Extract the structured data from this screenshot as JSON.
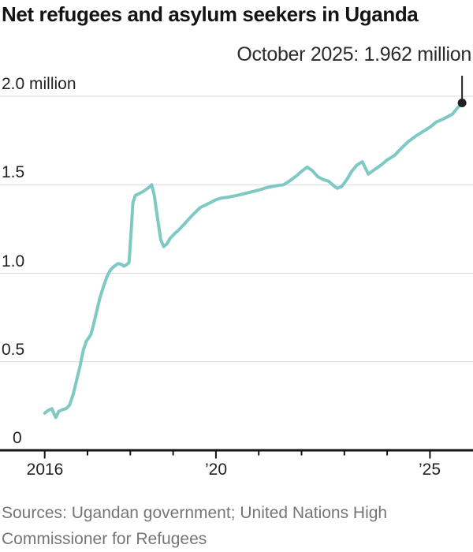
{
  "title": "Net refugees and asylum seekers in Uganda",
  "annotation": "October 2025: 1.962 million",
  "sources": {
    "lines": [
      "Sources: Ugandan government; United Nations High",
      "Commissioner for Refugees"
    ]
  },
  "colors": {
    "line": "#7fc9c5",
    "marker": "#222222",
    "grid": "#d9d9d9",
    "axis": "#141414",
    "text": "#222222",
    "muted": "#757575"
  },
  "chart_data": {
    "type": "line",
    "title": "Net refugees and asylum seekers in Uganda",
    "xlabel": "",
    "ylabel": "million",
    "ylim": [
      0,
      2.0
    ],
    "xlim": [
      2015.0,
      2026.0
    ],
    "grid": true,
    "legend_position": "none",
    "annotation": "October 2025: 1.962 million",
    "end_point": {
      "year": 2025.75,
      "value": 1.962,
      "label": "October 2025: 1.962 million"
    },
    "yticks": [
      {
        "value": 2.0,
        "label": "2.0 million"
      },
      {
        "value": 1.5,
        "label": "1.5"
      },
      {
        "value": 1.0,
        "label": "1.0"
      },
      {
        "value": 0.5,
        "label": "0.5"
      },
      {
        "value": 0.0,
        "label": "0"
      }
    ],
    "xticks": [
      {
        "year": 2016,
        "label": "2016",
        "major": true
      },
      {
        "year": 2017,
        "label": "",
        "major": false
      },
      {
        "year": 2018,
        "label": "",
        "major": false
      },
      {
        "year": 2019,
        "label": "",
        "major": false
      },
      {
        "year": 2020,
        "label": "’20",
        "major": true
      },
      {
        "year": 2021,
        "label": "",
        "major": false
      },
      {
        "year": 2022,
        "label": "",
        "major": false
      },
      {
        "year": 2023,
        "label": "",
        "major": false
      },
      {
        "year": 2024,
        "label": "",
        "major": false
      },
      {
        "year": 2025,
        "label": "’25",
        "major": true
      }
    ],
    "series": [
      {
        "name": "Net refugees and asylum seekers (millions)",
        "points": [
          [
            2016.0,
            0.21
          ],
          [
            2016.08,
            0.225
          ],
          [
            2016.17,
            0.235
          ],
          [
            2016.22,
            0.205
          ],
          [
            2016.26,
            0.185
          ],
          [
            2016.33,
            0.22
          ],
          [
            2016.42,
            0.23
          ],
          [
            2016.5,
            0.235
          ],
          [
            2016.58,
            0.255
          ],
          [
            2016.67,
            0.32
          ],
          [
            2016.75,
            0.4
          ],
          [
            2016.83,
            0.48
          ],
          [
            2016.9,
            0.565
          ],
          [
            2016.97,
            0.615
          ],
          [
            2017.04,
            0.64
          ],
          [
            2017.08,
            0.655
          ],
          [
            2017.13,
            0.7
          ],
          [
            2017.21,
            0.78
          ],
          [
            2017.29,
            0.86
          ],
          [
            2017.38,
            0.93
          ],
          [
            2017.46,
            0.985
          ],
          [
            2017.54,
            1.02
          ],
          [
            2017.63,
            1.04
          ],
          [
            2017.71,
            1.055
          ],
          [
            2017.79,
            1.05
          ],
          [
            2017.85,
            1.04
          ],
          [
            2017.92,
            1.05
          ],
          [
            2017.97,
            1.06
          ],
          [
            2018.02,
            1.24
          ],
          [
            2018.06,
            1.4
          ],
          [
            2018.12,
            1.44
          ],
          [
            2018.21,
            1.45
          ],
          [
            2018.29,
            1.46
          ],
          [
            2018.38,
            1.475
          ],
          [
            2018.46,
            1.49
          ],
          [
            2018.5,
            1.5
          ],
          [
            2018.56,
            1.44
          ],
          [
            2018.63,
            1.32
          ],
          [
            2018.71,
            1.19
          ],
          [
            2018.78,
            1.15
          ],
          [
            2018.85,
            1.165
          ],
          [
            2018.94,
            1.2
          ],
          [
            2019.04,
            1.225
          ],
          [
            2019.13,
            1.245
          ],
          [
            2019.25,
            1.275
          ],
          [
            2019.38,
            1.31
          ],
          [
            2019.5,
            1.34
          ],
          [
            2019.63,
            1.37
          ],
          [
            2019.75,
            1.385
          ],
          [
            2019.88,
            1.4
          ],
          [
            2020.0,
            1.415
          ],
          [
            2020.13,
            1.425
          ],
          [
            2020.29,
            1.43
          ],
          [
            2020.5,
            1.44
          ],
          [
            2020.75,
            1.455
          ],
          [
            2021.0,
            1.47
          ],
          [
            2021.21,
            1.485
          ],
          [
            2021.42,
            1.495
          ],
          [
            2021.58,
            1.5
          ],
          [
            2021.71,
            1.52
          ],
          [
            2021.88,
            1.55
          ],
          [
            2022.0,
            1.575
          ],
          [
            2022.13,
            1.6
          ],
          [
            2022.25,
            1.58
          ],
          [
            2022.38,
            1.545
          ],
          [
            2022.5,
            1.53
          ],
          [
            2022.63,
            1.52
          ],
          [
            2022.75,
            1.495
          ],
          [
            2022.83,
            1.48
          ],
          [
            2022.94,
            1.49
          ],
          [
            2023.06,
            1.53
          ],
          [
            2023.17,
            1.575
          ],
          [
            2023.29,
            1.61
          ],
          [
            2023.42,
            1.63
          ],
          [
            2023.5,
            1.59
          ],
          [
            2023.56,
            1.56
          ],
          [
            2023.7,
            1.585
          ],
          [
            2023.85,
            1.61
          ],
          [
            2024.0,
            1.64
          ],
          [
            2024.17,
            1.665
          ],
          [
            2024.33,
            1.705
          ],
          [
            2024.5,
            1.745
          ],
          [
            2024.67,
            1.775
          ],
          [
            2024.83,
            1.8
          ],
          [
            2025.0,
            1.825
          ],
          [
            2025.15,
            1.855
          ],
          [
            2025.3,
            1.87
          ],
          [
            2025.42,
            1.885
          ],
          [
            2025.53,
            1.9
          ],
          [
            2025.62,
            1.928
          ],
          [
            2025.69,
            1.947
          ],
          [
            2025.75,
            1.962
          ]
        ]
      }
    ]
  }
}
